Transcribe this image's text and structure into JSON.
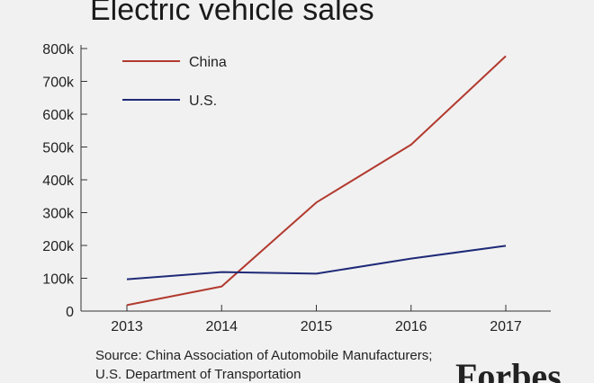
{
  "page": {
    "title": "Electric vehicle sales",
    "source_line1": "Source: China Association of Automobile Manufacturers;",
    "source_line2": "U.S. Department of Transportation",
    "logo": "Forbes"
  },
  "chart_data": {
    "type": "line",
    "title": "Electric vehicle sales",
    "xlabel": "",
    "ylabel": "",
    "x": [
      "2013",
      "2014",
      "2015",
      "2016",
      "2017"
    ],
    "ylim": [
      0,
      800000
    ],
    "yticks": [
      0,
      100000,
      200000,
      300000,
      400000,
      500000,
      600000,
      700000,
      800000
    ],
    "ytick_labels": [
      "0",
      "100k",
      "200k",
      "300k",
      "400k",
      "500k",
      "600k",
      "700k",
      "800k"
    ],
    "grid": false,
    "legend_position": "top-left",
    "series": [
      {
        "name": "China",
        "color": "#b23a2f",
        "values": [
          18000,
          75000,
          331000,
          507000,
          777000
        ]
      },
      {
        "name": "U.S.",
        "color": "#1f2a78",
        "values": [
          97000,
          119000,
          114000,
          160000,
          199000
        ]
      }
    ]
  }
}
